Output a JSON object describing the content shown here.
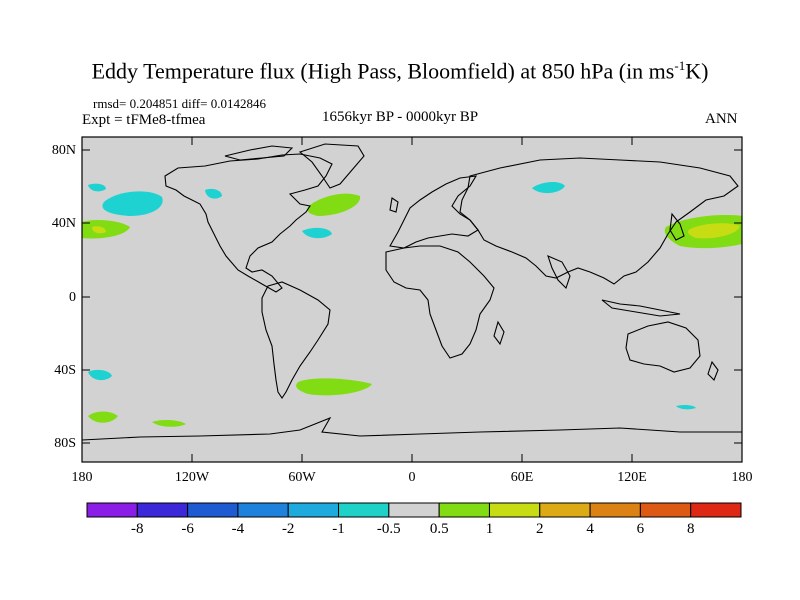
{
  "title": "Eddy Temperature flux (High Pass, Bloomfield) at 850 hPa (in ms",
  "title_sup": "-1",
  "title_end": "K)",
  "stats": "rmsd= 0.204851  diff= 0.0142846",
  "experiment": "Expt = tFMe8-tfmea",
  "period": "1656kyr BP - 0000kyr BP",
  "season": "ANN",
  "lat_labels": [
    "80N",
    "40N",
    "0",
    "40S",
    "80S"
  ],
  "lon_labels": [
    "180",
    "120W",
    "60W",
    "0",
    "60E",
    "120E",
    "180"
  ],
  "colorbar": {
    "labels": [
      "-8",
      "-6",
      "-4",
      "-2",
      "-1",
      "-0.5",
      "0.5",
      "1",
      "2",
      "4",
      "6",
      "8"
    ],
    "colors": [
      "#8a1ee6",
      "#3c28d8",
      "#1e5ad2",
      "#1e82dc",
      "#1eaadc",
      "#1ed2c8",
      "#d2d2d2",
      "#82dc14",
      "#c8dc14",
      "#dcaa14",
      "#dc8214",
      "#dc5a14",
      "#dc2814"
    ]
  },
  "colors": {
    "ocean_fill": "#d2d2d2",
    "cyan": "#1ed2d2",
    "green": "#82dc14",
    "yellow": "#c8dc14"
  }
}
